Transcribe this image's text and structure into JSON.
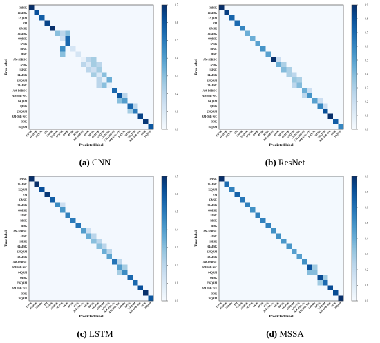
{
  "classes": [
    "32PSK",
    "16APSK",
    "32QAM",
    "FM",
    "GMSK",
    "32APSK",
    "OQPSK",
    "8ASK",
    "BPSK",
    "8PSK",
    "AM-SSB-SC",
    "4ASK",
    "16PSK",
    "64APSK",
    "128QAM",
    "128APSK",
    "AM-DSB-SC",
    "AM-SSB-WC",
    "64QAM",
    "QPSK",
    "256QAM",
    "AM-DSB-WC",
    "OOK",
    "16QAM"
  ],
  "ylabel": "True label",
  "xlabel": "Predicted label",
  "colors": {
    "low": "#f7fbff",
    "high": "#08306b"
  },
  "panels": [
    {
      "id": "cnn",
      "caption_prefix": "(a)",
      "caption_name": "CNN",
      "vmax": 0.7,
      "ticks": [
        "0.7",
        "0.6",
        "0.5",
        "0.4",
        "0.3",
        "0.2",
        "0.1",
        "0.0"
      ]
    },
    {
      "id": "resnet",
      "caption_prefix": "(b)",
      "caption_name": "ResNet",
      "vmax": 0.9,
      "ticks": [
        "0.9",
        "0.8",
        "0.7",
        "0.6",
        "0.5",
        "0.4",
        "0.3",
        "0.2",
        "0.1",
        "0.0"
      ]
    },
    {
      "id": "lstm",
      "caption_prefix": "(c)",
      "caption_name": "LSTM",
      "vmax": 0.7,
      "ticks": [
        "0.7",
        "0.6",
        "0.5",
        "0.4",
        "0.3",
        "0.2",
        "0.1",
        "0.0"
      ]
    },
    {
      "id": "mssa",
      "caption_prefix": "(d)",
      "caption_name": "MSSA",
      "vmax": 0.8,
      "ticks": [
        "0.8",
        "0.7",
        "0.6",
        "0.5",
        "0.4",
        "0.3",
        "0.2",
        "0.1",
        "0.0"
      ]
    }
  ],
  "chart_data": [
    {
      "type": "heatmap",
      "title": "",
      "xlabel": "Predicted label",
      "ylabel": "True label",
      "colorbar_range": [
        0,
        0.7
      ],
      "diagonal": [
        0.72,
        0.62,
        0.58,
        0.65,
        0.7,
        0.3,
        0.15,
        0.55,
        0.12,
        0.12,
        0.05,
        0.1,
        0.15,
        0.1,
        0.05,
        0.05,
        0.55,
        0.6,
        0.4,
        0.55,
        0.5,
        0.65,
        0.68,
        0.6
      ],
      "off_diagonal": [
        [
          5,
          6,
          0.2
        ],
        [
          5,
          7,
          0.3
        ],
        [
          6,
          7,
          0.55
        ],
        [
          8,
          6,
          0.45
        ],
        [
          9,
          6,
          0.3
        ],
        [
          10,
          11,
          0.2
        ],
        [
          10,
          12,
          0.25
        ],
        [
          11,
          10,
          0.2
        ],
        [
          11,
          12,
          0.25
        ],
        [
          11,
          13,
          0.2
        ],
        [
          12,
          11,
          0.2
        ],
        [
          12,
          13,
          0.25
        ],
        [
          13,
          12,
          0.25
        ],
        [
          13,
          14,
          0.3
        ],
        [
          14,
          13,
          0.2
        ],
        [
          14,
          15,
          0.35
        ],
        [
          15,
          14,
          0.3
        ],
        [
          15,
          13,
          0.2
        ],
        [
          17,
          18,
          0.2
        ],
        [
          18,
          17,
          0.3
        ],
        [
          19,
          20,
          0.2
        ],
        [
          20,
          19,
          0.25
        ]
      ]
    },
    {
      "type": "heatmap",
      "title": "",
      "xlabel": "Predicted label",
      "ylabel": "True label",
      "colorbar_range": [
        0,
        0.9
      ],
      "diagonal": [
        0.9,
        0.85,
        0.72,
        0.7,
        0.6,
        0.45,
        0.45,
        0.5,
        0.55,
        0.5,
        0.9,
        0.45,
        0.4,
        0.3,
        0.35,
        0.4,
        0.45,
        0.55,
        0.5,
        0.6,
        0.8,
        0.95,
        0.75,
        0.6
      ],
      "off_diagonal": [
        [
          10,
          11,
          0.2
        ],
        [
          11,
          12,
          0.3
        ],
        [
          12,
          13,
          0.3
        ],
        [
          13,
          14,
          0.25
        ],
        [
          14,
          15,
          0.3
        ],
        [
          15,
          14,
          0.25
        ],
        [
          16,
          17,
          0.2
        ],
        [
          17,
          16,
          0.25
        ],
        [
          18,
          19,
          0.2
        ],
        [
          19,
          20,
          0.2
        ]
      ]
    },
    {
      "type": "heatmap",
      "title": "",
      "xlabel": "Predicted label",
      "ylabel": "True label",
      "colorbar_range": [
        0,
        0.7
      ],
      "diagonal": [
        0.72,
        0.72,
        0.62,
        0.68,
        0.58,
        0.45,
        0.42,
        0.48,
        0.5,
        0.52,
        0.4,
        0.35,
        0.3,
        0.3,
        0.35,
        0.38,
        0.52,
        0.4,
        0.45,
        0.55,
        0.55,
        0.62,
        0.72,
        0.6
      ],
      "off_diagonal": [
        [
          5,
          6,
          0.15
        ],
        [
          10,
          11,
          0.15
        ],
        [
          11,
          12,
          0.2
        ],
        [
          12,
          13,
          0.2
        ],
        [
          13,
          14,
          0.2
        ],
        [
          14,
          15,
          0.2
        ],
        [
          16,
          17,
          0.2
        ],
        [
          17,
          18,
          0.25
        ],
        [
          18,
          17,
          0.25
        ]
      ]
    },
    {
      "type": "heatmap",
      "title": "",
      "xlabel": "Predicted label",
      "ylabel": "True label",
      "colorbar_range": [
        0,
        0.8
      ],
      "diagonal": [
        0.8,
        0.62,
        0.55,
        0.65,
        0.58,
        0.55,
        0.5,
        0.55,
        0.55,
        0.55,
        0.5,
        0.5,
        0.48,
        0.48,
        0.45,
        0.45,
        0.5,
        0.7,
        0.35,
        0.72,
        0.62,
        0.72,
        0.72,
        0.85
      ],
      "off_diagonal": [
        [
          17,
          18,
          0.3
        ],
        [
          18,
          17,
          0.35
        ],
        [
          19,
          20,
          0.3
        ],
        [
          20,
          19,
          0.3
        ]
      ]
    }
  ]
}
